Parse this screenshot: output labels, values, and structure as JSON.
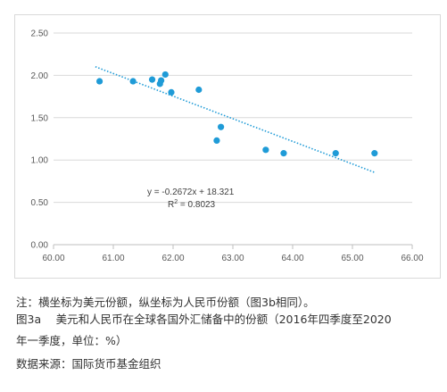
{
  "chart_data": {
    "type": "scatter",
    "title": "",
    "xlabel": "",
    "ylabel": "",
    "xlim": [
      60,
      66
    ],
    "ylim": [
      0,
      2.5
    ],
    "x_ticks": [
      "60.00",
      "61.00",
      "62.00",
      "63.00",
      "64.00",
      "65.00",
      "66.00"
    ],
    "y_ticks": [
      "0.00",
      "0.50",
      "1.00",
      "1.50",
      "2.00",
      "2.50"
    ],
    "grid": "horizontal",
    "marker_color": "#1f9bd7",
    "trendline_color": "#1f9bd7",
    "points": [
      {
        "x": 60.77,
        "y": 1.93
      },
      {
        "x": 61.33,
        "y": 1.93
      },
      {
        "x": 61.65,
        "y": 1.95
      },
      {
        "x": 61.78,
        "y": 1.9
      },
      {
        "x": 61.8,
        "y": 1.94
      },
      {
        "x": 61.87,
        "y": 2.01
      },
      {
        "x": 61.97,
        "y": 1.8
      },
      {
        "x": 62.43,
        "y": 1.83
      },
      {
        "x": 62.73,
        "y": 1.23
      },
      {
        "x": 62.8,
        "y": 1.39
      },
      {
        "x": 63.55,
        "y": 1.12
      },
      {
        "x": 63.85,
        "y": 1.08
      },
      {
        "x": 64.72,
        "y": 1.08
      },
      {
        "x": 65.37,
        "y": 1.08
      }
    ],
    "trendline": {
      "slope": -0.2672,
      "intercept": 18.321,
      "x_start": 60.7,
      "x_end": 65.37
    },
    "equation_label": "y = -0.2672x + 18.321",
    "r2_label_prefix": "R",
    "r2_label_sup": "2",
    "r2_label_value": " = 0.8023"
  },
  "notes": {
    "note": "注：横坐标为美元份额，纵坐标为人民币份额（图3b相同）。",
    "caption_line1": "图3a　 美元和人民币在全球各国外汇储备中的份额（2016年四季度至2020",
    "caption_line2": "年一季度，单位：%）",
    "source": "数据来源：国际货币基金组织"
  }
}
